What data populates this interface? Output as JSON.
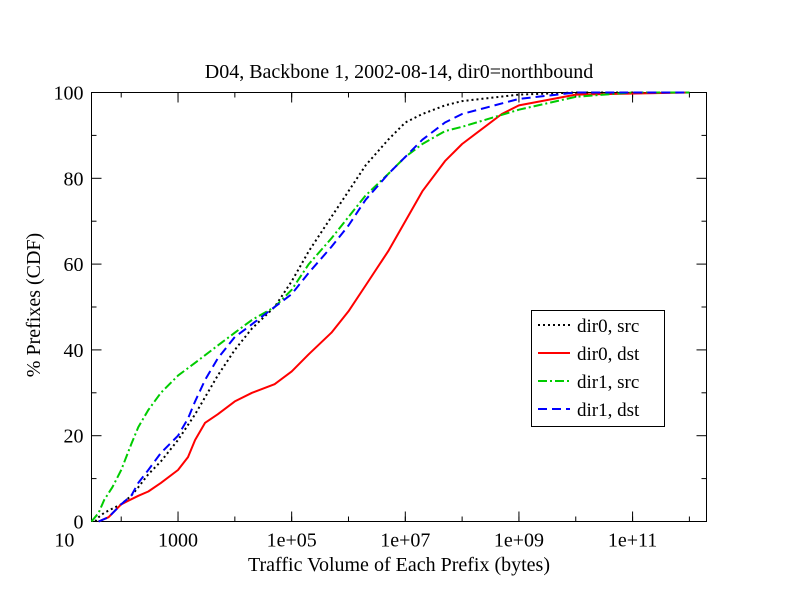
{
  "chart_data": {
    "type": "line",
    "title": "D04, Backbone 1, 2002-08-14, dir0=northbound",
    "xlabel": "Traffic Volume of Each Prefix (bytes)",
    "ylabel": "% Prefixes (CDF)",
    "xscale": "log",
    "xlim": [
      30,
      2000000000000
    ],
    "ylim": [
      0,
      100
    ],
    "xticks": [
      10,
      1000,
      100000,
      10000000,
      1000000000,
      100000000000
    ],
    "xtick_labels": [
      "10",
      "1000",
      "1e+05",
      "1e+07",
      "1e+09",
      "1e+11"
    ],
    "yticks": [
      0,
      20,
      40,
      60,
      80,
      100
    ],
    "ytick_labels": [
      "0",
      "20",
      "40",
      "60",
      "80",
      "100"
    ],
    "grid": false,
    "legend_position": "center-right",
    "series": [
      {
        "name": "dir0, src",
        "color": "#000000",
        "style": "dotted",
        "points": [
          [
            35,
            0
          ],
          [
            40,
            1
          ],
          [
            50,
            2
          ],
          [
            70,
            3
          ],
          [
            100,
            4
          ],
          [
            150,
            6
          ],
          [
            200,
            8
          ],
          [
            300,
            11
          ],
          [
            500,
            14
          ],
          [
            1000,
            19
          ],
          [
            2000,
            25
          ],
          [
            5000,
            34
          ],
          [
            10000,
            40
          ],
          [
            20000,
            45
          ],
          [
            50000,
            50
          ],
          [
            100000,
            56
          ],
          [
            200000,
            63
          ],
          [
            500000,
            71
          ],
          [
            1000000,
            77
          ],
          [
            2000000,
            83
          ],
          [
            5000000,
            89
          ],
          [
            10000000,
            93
          ],
          [
            20000000,
            95
          ],
          [
            50000000,
            97
          ],
          [
            100000000,
            98
          ],
          [
            1000000000,
            99.5
          ],
          [
            10000000000,
            100
          ],
          [
            1000000000000,
            100
          ]
        ]
      },
      {
        "name": "dir0, dst",
        "color": "#ff0000",
        "style": "solid",
        "points": [
          [
            40,
            0
          ],
          [
            60,
            1
          ],
          [
            100,
            4
          ],
          [
            200,
            6
          ],
          [
            300,
            7
          ],
          [
            500,
            9
          ],
          [
            1000,
            12
          ],
          [
            1500,
            15
          ],
          [
            2000,
            19
          ],
          [
            3000,
            23
          ],
          [
            5000,
            25
          ],
          [
            10000,
            28
          ],
          [
            20000,
            30
          ],
          [
            50000,
            32
          ],
          [
            100000,
            35
          ],
          [
            200000,
            39
          ],
          [
            500000,
            44
          ],
          [
            1000000,
            49
          ],
          [
            2000000,
            55
          ],
          [
            5000000,
            63
          ],
          [
            10000000,
            70
          ],
          [
            20000000,
            77
          ],
          [
            50000000,
            84
          ],
          [
            100000000,
            88
          ],
          [
            200000000,
            91
          ],
          [
            500000000,
            95
          ],
          [
            1000000000,
            97
          ],
          [
            10000000000,
            99.5
          ],
          [
            1000000000000,
            100
          ]
        ]
      },
      {
        "name": "dir1, src",
        "color": "#00cc00",
        "style": "dash-dot",
        "points": [
          [
            30,
            0
          ],
          [
            40,
            2
          ],
          [
            50,
            5
          ],
          [
            70,
            8
          ],
          [
            100,
            12
          ],
          [
            150,
            18
          ],
          [
            200,
            22
          ],
          [
            300,
            26
          ],
          [
            500,
            30
          ],
          [
            1000,
            34
          ],
          [
            2000,
            37
          ],
          [
            5000,
            41
          ],
          [
            10000,
            44
          ],
          [
            20000,
            47
          ],
          [
            50000,
            50
          ],
          [
            100000,
            54
          ],
          [
            200000,
            60
          ],
          [
            500000,
            66
          ],
          [
            1000000,
            71
          ],
          [
            2000000,
            76
          ],
          [
            5000000,
            81
          ],
          [
            10000000,
            85
          ],
          [
            20000000,
            88
          ],
          [
            50000000,
            91
          ],
          [
            100000000,
            92
          ],
          [
            1000000000,
            96
          ],
          [
            10000000000,
            99
          ],
          [
            100000000000,
            100
          ],
          [
            1000000000000,
            100
          ]
        ]
      },
      {
        "name": "dir1, dst",
        "color": "#0000ff",
        "style": "dashed",
        "points": [
          [
            40,
            0
          ],
          [
            60,
            1
          ],
          [
            100,
            4
          ],
          [
            150,
            6
          ],
          [
            200,
            9
          ],
          [
            300,
            12
          ],
          [
            500,
            16
          ],
          [
            1000,
            20
          ],
          [
            1500,
            24
          ],
          [
            2000,
            28
          ],
          [
            3000,
            33
          ],
          [
            5000,
            38
          ],
          [
            10000,
            43
          ],
          [
            20000,
            46
          ],
          [
            50000,
            50
          ],
          [
            100000,
            53
          ],
          [
            200000,
            58
          ],
          [
            500000,
            64
          ],
          [
            1000000,
            69
          ],
          [
            2000000,
            75
          ],
          [
            5000000,
            81
          ],
          [
            10000000,
            85
          ],
          [
            20000000,
            89
          ],
          [
            50000000,
            93
          ],
          [
            100000000,
            95
          ],
          [
            1000000000,
            98.5
          ],
          [
            10000000000,
            100
          ],
          [
            1000000000000,
            100
          ]
        ]
      }
    ]
  }
}
